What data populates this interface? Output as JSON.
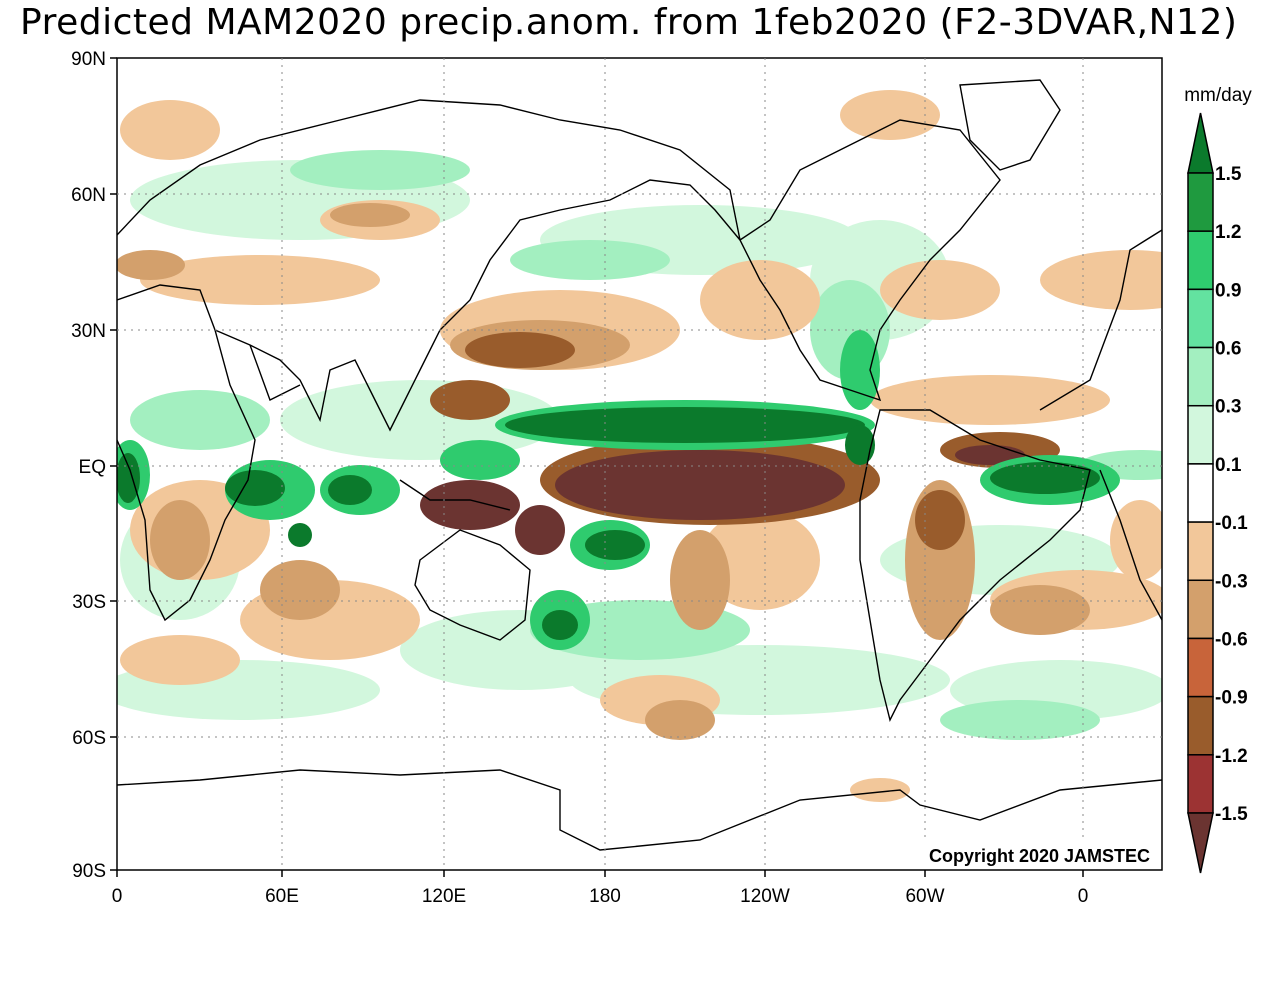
{
  "title": "Predicted MAM2020 precip.anom. from 1feb2020 (F2-3DVAR,N12)",
  "units": "mm/day",
  "copyright": "Copyright 2020 JAMSTEC",
  "lat_labels": [
    "90N",
    "60N",
    "30N",
    "EQ",
    "30S",
    "60S",
    "90S"
  ],
  "lon_labels": [
    "0",
    "60E",
    "120E",
    "180",
    "120W",
    "60W",
    "0"
  ],
  "colorbar": {
    "levels": [
      "1.5",
      "1.2",
      "0.9",
      "0.6",
      "0.3",
      "0.1",
      "-0.1",
      "-0.3",
      "-0.6",
      "-0.9",
      "-1.2",
      "-1.5"
    ],
    "colors": [
      "#0b7a2c",
      "#1f9a3f",
      "#2fcb6e",
      "#63e2a0",
      "#a3efc0",
      "#d2f7dd",
      "#ffffff",
      "#f2c79a",
      "#d3a06c",
      "#c8643a",
      "#995c2c",
      "#9c3333",
      "#6b3431"
    ]
  },
  "anomaly_colors": {
    "wet_strong": "#0b7a2c",
    "wet": "#2fcb6e",
    "wet_light": "#a3efc0",
    "dry_light": "#f2c79a",
    "dry": "#d3a06c",
    "dry_strong": "#995c2c",
    "dry_extreme": "#6b3431"
  }
}
